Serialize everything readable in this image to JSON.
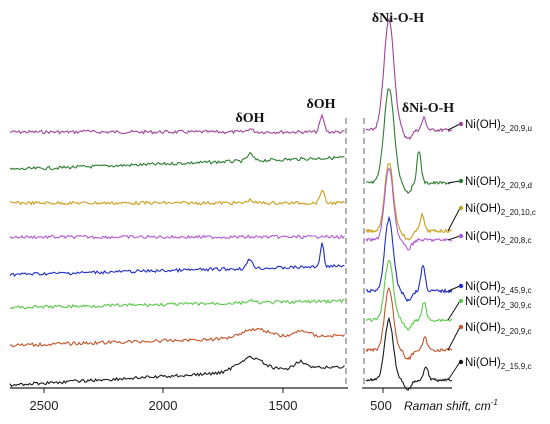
{
  "chart_data": {
    "type": "line",
    "xlabel": "Raman shift, cm",
    "xlabel_exp": "-1",
    "x_ticks_left": [
      "2500",
      "2000",
      "1500"
    ],
    "x_ticks_right": [
      "500"
    ],
    "annotations": [
      "δOH",
      "δOH",
      "δNi-O-H",
      "δNi-O-H"
    ],
    "series": [
      {
        "name": "Ni(OH)",
        "subscript": "2_20,9,u",
        "color": "#a0449a"
      },
      {
        "name": "Ni(OH)",
        "subscript": "2_20,9,d",
        "color": "#2e7d32"
      },
      {
        "name": "Ni(OH)",
        "subscript": "2_20,10,c",
        "color": "#c9a01c"
      },
      {
        "name": "Ni(OH)",
        "subscript": "2_20,8,c",
        "color": "#b05ad6"
      },
      {
        "name": "Ni(OH)",
        "subscript": "2_45,9,c",
        "color": "#1f2ec4"
      },
      {
        "name": "Ni(OH)",
        "subscript": "2_30,9,c",
        "color": "#5ac84a"
      },
      {
        "name": "Ni(OH)",
        "subscript": "2_20,9,c",
        "color": "#c2552a"
      },
      {
        "name": "Ni(OH)",
        "subscript": "2_15,9,c",
        "color": "#1a1a1a"
      }
    ]
  }
}
